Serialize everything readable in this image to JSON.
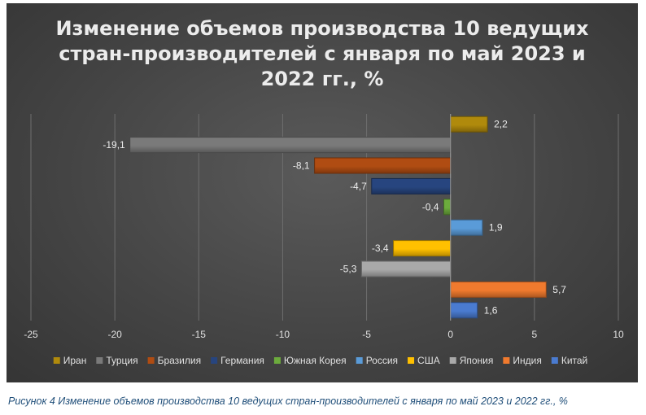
{
  "chart_data": {
    "type": "bar",
    "orientation": "horizontal",
    "title": "Изменение объемов производства 10 ведущих стран-производителей с января по май 2023 и 2022 гг., %",
    "categories": [
      "Иран",
      "Турция",
      "Бразилия",
      "Германия",
      "Южная Корея",
      "Россия",
      "США",
      "Япония",
      "Индия",
      "Китай"
    ],
    "values": [
      2.2,
      -19.1,
      -8.1,
      -4.7,
      -0.4,
      1.9,
      -3.4,
      -5.3,
      5.7,
      1.6
    ],
    "value_labels": [
      "2,2",
      "-19,1",
      "-8,1",
      "-4,7",
      "-0,4",
      "1,9",
      "-3,4",
      "-5,3",
      "5,7",
      "1,6"
    ],
    "colors": [
      "#b08a0c",
      "#7a7a7a",
      "#b04c12",
      "#27457f",
      "#6cab3d",
      "#5a9bd8",
      "#ffc000",
      "#a9a9a9",
      "#f07a2e",
      "#4a7bd0"
    ],
    "xlim": [
      -25,
      10
    ],
    "xticks": [
      "-25",
      "-20",
      "-15",
      "-10",
      "-5",
      "0",
      "5",
      "10"
    ],
    "grid": "vertical",
    "legend": "bottom",
    "xlabel": "",
    "ylabel": ""
  },
  "caption": "Рисунок 4 Изменение объемов производства 10 ведущих стран-производителей с января по май 2023 и 2022 гг., %"
}
